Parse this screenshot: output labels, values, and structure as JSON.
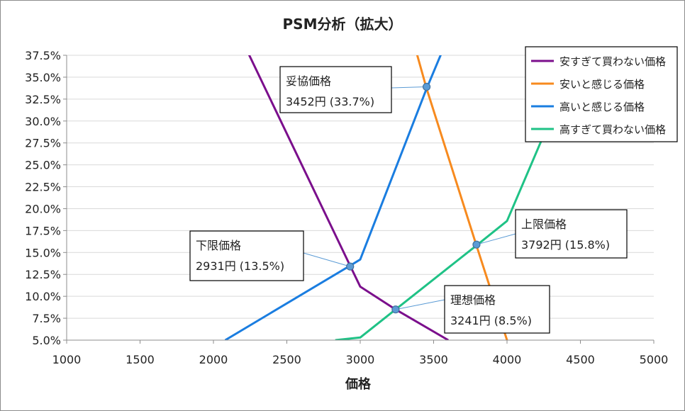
{
  "chart_data": {
    "type": "line",
    "title": "PSM分析（拡大）",
    "xlabel": "価格",
    "ylabel": "",
    "xlim": [
      1000,
      5000
    ],
    "ylim": [
      0.05,
      0.375
    ],
    "x_ticks": [
      "1000",
      "1500",
      "2000",
      "2500",
      "3000",
      "3500",
      "4000",
      "4500",
      "5000"
    ],
    "y_ticks": [
      "5.0%",
      "7.5%",
      "10.0%",
      "12.5%",
      "15.0%",
      "17.5%",
      "20.0%",
      "22.5%",
      "25.0%",
      "27.5%",
      "30.0%",
      "32.5%",
      "35.0%",
      "37.5%"
    ],
    "grid": true,
    "legend_position": "top-right",
    "series": [
      {
        "name": "安すぎて買わない価格",
        "color": "#7b0f8c",
        "points": [
          [
            2230,
            0.38
          ],
          [
            2931,
            0.135
          ],
          [
            3000,
            0.111
          ],
          [
            3241,
            0.085
          ],
          [
            3600,
            0.05
          ]
        ]
      },
      {
        "name": "安いと感じる価格",
        "color": "#f78a1e",
        "points": [
          [
            3380,
            0.38
          ],
          [
            3452,
            0.337
          ],
          [
            3792,
            0.158
          ],
          [
            4000,
            0.05
          ]
        ]
      },
      {
        "name": "高いと感じる価格",
        "color": "#1a7de0",
        "points": [
          [
            2080,
            0.05
          ],
          [
            2931,
            0.135
          ],
          [
            3000,
            0.142
          ],
          [
            3452,
            0.337
          ],
          [
            3560,
            0.38
          ]
        ]
      },
      {
        "name": "高すぎて買わない価格",
        "color": "#1fc286",
        "points": [
          [
            2830,
            0.05
          ],
          [
            3000,
            0.053
          ],
          [
            3241,
            0.085
          ],
          [
            3792,
            0.158
          ],
          [
            4000,
            0.186
          ],
          [
            4240,
            0.28
          ]
        ]
      }
    ],
    "annotations": [
      {
        "name": "妥協価格",
        "value": "3452円 (33.7%)",
        "x": 3452,
        "y": 0.339
      },
      {
        "name": "下限価格",
        "value": "2931円 (13.5%)",
        "x": 2931,
        "y": 0.134
      },
      {
        "name": "上限価格",
        "value": "3792円 (15.8%)",
        "x": 3792,
        "y": 0.159
      },
      {
        "name": "理想価格",
        "value": "3241円 (8.5%)",
        "x": 3241,
        "y": 0.085
      }
    ]
  }
}
